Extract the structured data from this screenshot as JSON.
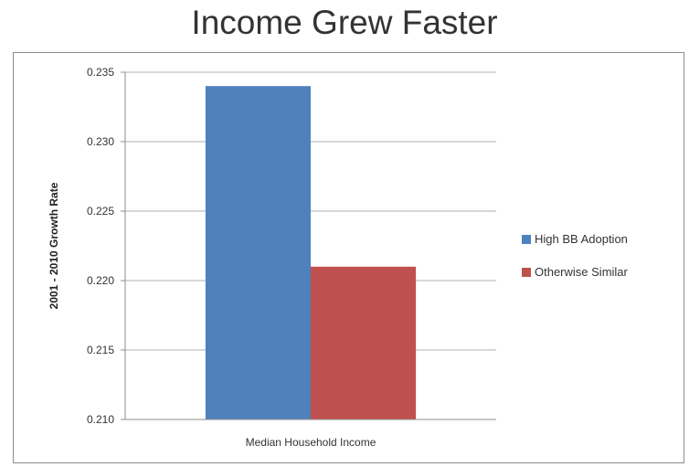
{
  "chart_data": {
    "type": "bar",
    "title": "Income Grew Faster",
    "ylabel": "2001 - 2010 Growth Rate",
    "xlabel": "",
    "categories": [
      "Median Household Income"
    ],
    "ylim": [
      0.21,
      0.235
    ],
    "yticks": [
      "0.210",
      "0.215",
      "0.220",
      "0.225",
      "0.230",
      "0.235"
    ],
    "ytick_values": [
      0.21,
      0.215,
      0.22,
      0.225,
      0.23,
      0.235
    ],
    "grid": true,
    "legend_position": "right",
    "series": [
      {
        "name": "High BB Adoption",
        "values": [
          0.234
        ],
        "color": "#4f81bd"
      },
      {
        "name": "Otherwise Similar",
        "values": [
          0.221
        ],
        "color": "#c0504d"
      }
    ]
  }
}
